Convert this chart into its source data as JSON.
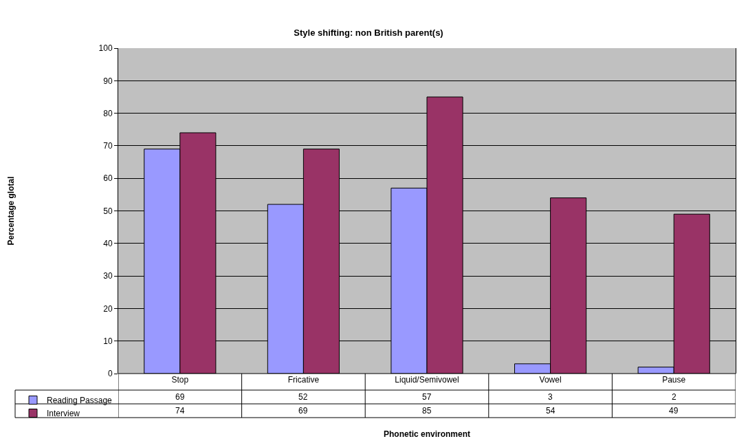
{
  "chart_data": {
    "type": "bar",
    "title": "Style shifting: non British parent(s)",
    "annotations": [
      "Phonetic environment",
      "Percentage glotal"
    ],
    "categories": [
      "Stop",
      "Fricative",
      "Liquid/Semivowel",
      "Vowel",
      "Pause"
    ],
    "series": [
      {
        "name": "Reading Passage",
        "color": "#9999ff",
        "values": [
          69,
          52,
          57,
          3,
          2
        ]
      },
      {
        "name": "Interview",
        "color": "#993366",
        "values": [
          74,
          69,
          85,
          54,
          49
        ]
      }
    ],
    "ylim": [
      0,
      100
    ],
    "yticks": [
      0,
      10,
      20,
      30,
      40,
      50,
      60,
      70,
      80,
      90,
      100
    ],
    "grid": "y",
    "legend": "bottom left",
    "data_labels": true
  }
}
